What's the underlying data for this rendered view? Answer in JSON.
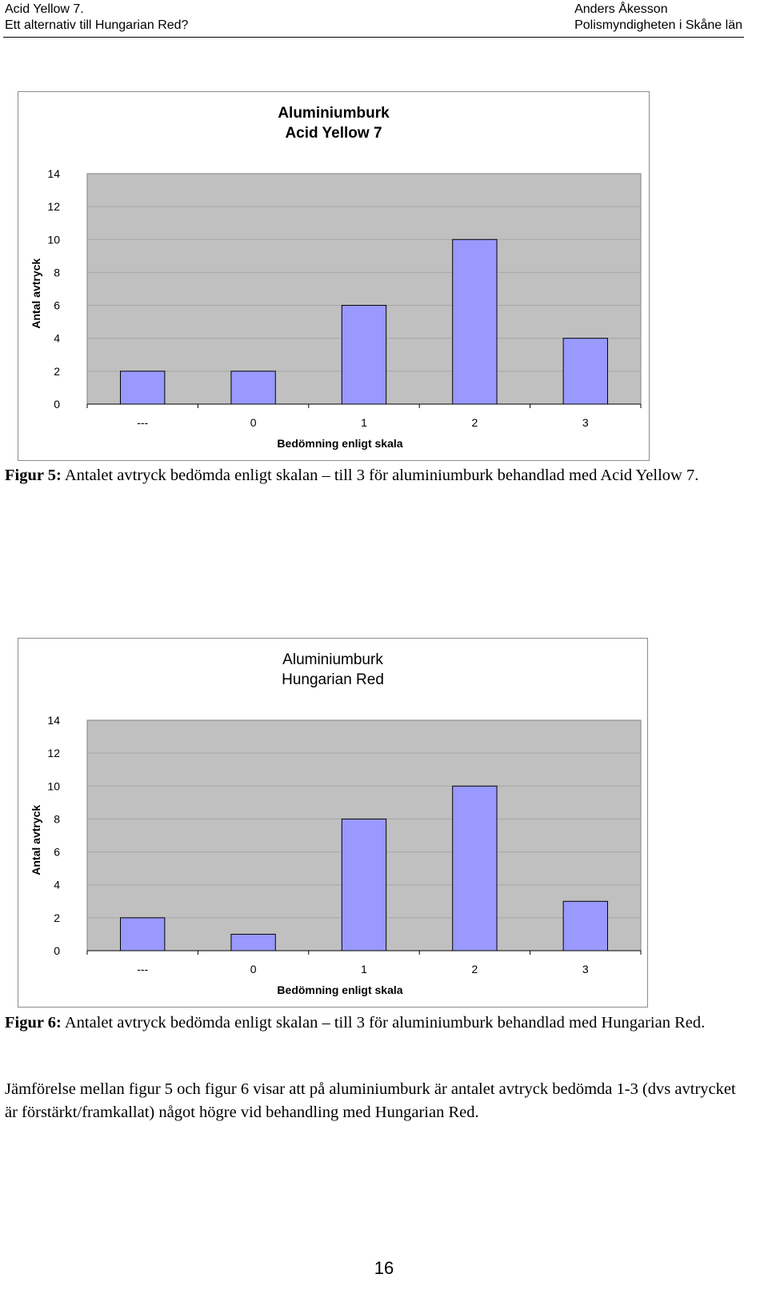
{
  "header": {
    "left_line1": "Acid Yellow 7.",
    "left_line2": "Ett alternativ till Hungarian Red?",
    "right_line1": "Anders Åkesson",
    "right_line2": "Polismyndigheten i Skåne län"
  },
  "colors": {
    "bar_fill": "#9999ff",
    "plot_bg": "#c0c0c0",
    "grid": "#a6a6a6"
  },
  "chart_data": [
    {
      "type": "bar",
      "title": [
        "Aluminiumburk",
        "Acid Yellow 7"
      ],
      "xlabel": "Bedömning enligt skala",
      "ylabel": "Antal avtryck",
      "categories": [
        "---",
        "0",
        "1",
        "2",
        "3"
      ],
      "values": [
        2,
        2,
        6,
        10,
        4
      ],
      "ylim": [
        0,
        14
      ],
      "yticks": [
        0,
        2,
        4,
        6,
        8,
        10,
        12,
        14
      ],
      "grid": true
    },
    {
      "type": "bar",
      "title": [
        "Aluminiumburk",
        "Hungarian Red"
      ],
      "xlabel": "Bedömning enligt skala",
      "ylabel": "Antal avtryck",
      "categories": [
        "---",
        "0",
        "1",
        "2",
        "3"
      ],
      "values": [
        2,
        1,
        8,
        10,
        3
      ],
      "ylim": [
        0,
        14
      ],
      "yticks": [
        0,
        2,
        4,
        6,
        8,
        10,
        12,
        14
      ],
      "grid": true
    }
  ],
  "figures": [
    {
      "label": "Figur 5:",
      "text": "Antalet avtryck bedömda enligt skalan – till 3 för aluminiumburk behandlad med Acid Yellow 7."
    },
    {
      "label": "Figur 6:",
      "text": "Antalet avtryck bedömda enligt skalan – till 3 för aluminiumburk behandlad med Hungarian Red."
    }
  ],
  "body": {
    "paragraph": "Jämförelse mellan figur 5 och figur 6 visar att på aluminiumburk är antalet avtryck bedömda 1-3 (dvs avtrycket är förstärkt/framkallat) något högre vid behandling med Hungarian Red."
  },
  "page_number": "16"
}
